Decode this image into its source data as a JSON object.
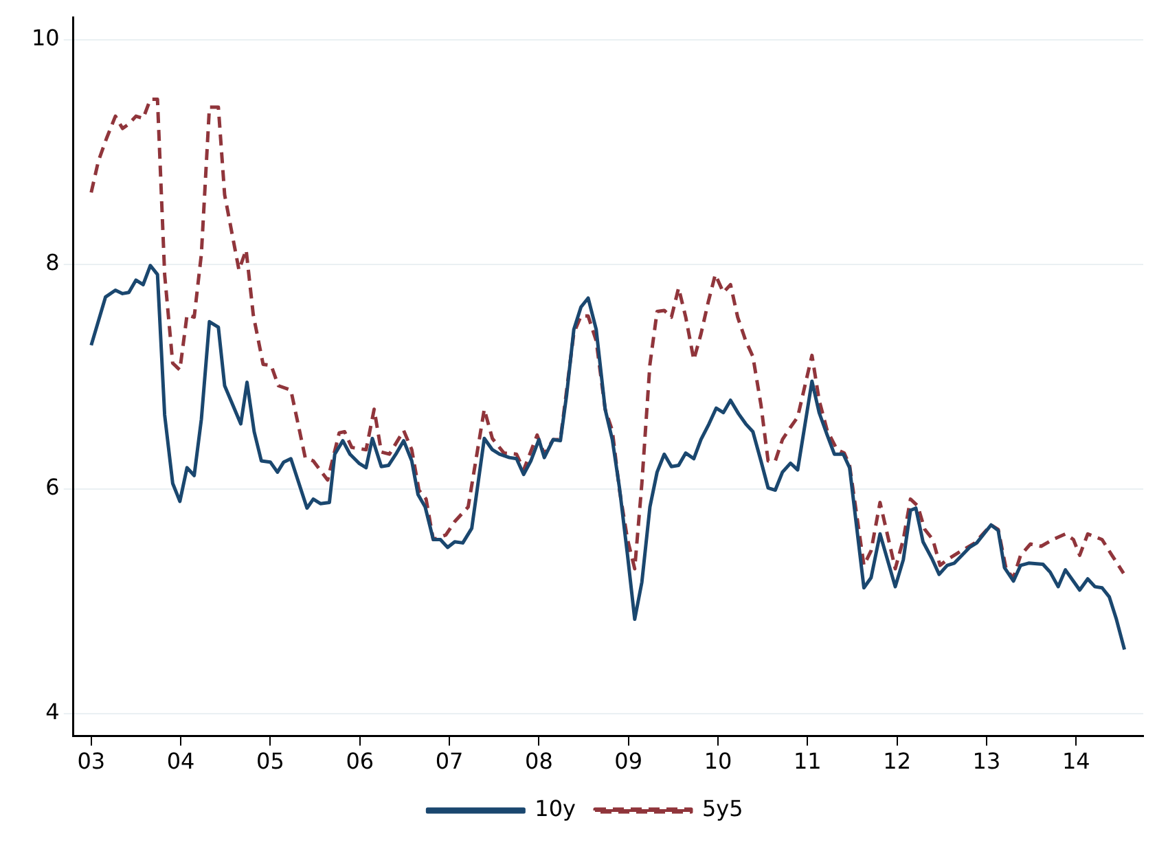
{
  "chart_data": {
    "type": "line",
    "xlim": [
      2002.8,
      2014.75
    ],
    "ylim": [
      3.8,
      10.2
    ],
    "xticks": [
      {
        "value": 2003,
        "label": "03"
      },
      {
        "value": 2004,
        "label": "04"
      },
      {
        "value": 2005,
        "label": "05"
      },
      {
        "value": 2006,
        "label": "06"
      },
      {
        "value": 2007,
        "label": "07"
      },
      {
        "value": 2008,
        "label": "08"
      },
      {
        "value": 2009,
        "label": "09"
      },
      {
        "value": 2010,
        "label": "10"
      },
      {
        "value": 2011,
        "label": "11"
      },
      {
        "value": 2012,
        "label": "12"
      },
      {
        "value": 2013,
        "label": "13"
      },
      {
        "value": 2014,
        "label": "14"
      }
    ],
    "yticks": [
      4,
      6,
      8,
      10
    ],
    "grid": "y",
    "legend": "bottom",
    "marker": "none",
    "series": [
      {
        "name": "10y",
        "color": "#1a476f",
        "line_style": "solid",
        "x": [
          2003.0,
          2003.16,
          2003.27,
          2003.35,
          2003.42,
          2003.5,
          2003.58,
          2003.66,
          2003.74,
          2003.82,
          2003.91,
          2003.99,
          2004.07,
          2004.15,
          2004.23,
          2004.32,
          2004.42,
          2004.49,
          2004.67,
          2004.74,
          2004.82,
          2004.9,
          2005.0,
          2005.08,
          2005.15,
          2005.23,
          2005.41,
          2005.48,
          2005.56,
          2005.66,
          2005.72,
          2005.81,
          2005.89,
          2005.99,
          2006.07,
          2006.14,
          2006.24,
          2006.32,
          2006.41,
          2006.49,
          2006.58,
          2006.65,
          2006.73,
          2006.82,
          2006.9,
          2006.98,
          2007.06,
          2007.15,
          2007.25,
          2007.39,
          2007.48,
          2007.56,
          2007.67,
          2007.75,
          2007.83,
          2007.91,
          2008.0,
          2008.06,
          2008.16,
          2008.24,
          2008.31,
          2008.39,
          2008.47,
          2008.55,
          2008.64,
          2008.74,
          2008.82,
          2008.9,
          2008.99,
          2009.07,
          2009.15,
          2009.24,
          2009.32,
          2009.4,
          2009.48,
          2009.56,
          2009.64,
          2009.73,
          2009.81,
          2009.9,
          2009.98,
          2010.06,
          2010.14,
          2010.23,
          2010.31,
          2010.39,
          2010.48,
          2010.56,
          2010.64,
          2010.72,
          2010.81,
          2010.89,
          2011.05,
          2011.13,
          2011.22,
          2011.3,
          2011.4,
          2011.47,
          2011.63,
          2011.71,
          2011.81,
          2011.98,
          2012.07,
          2012.15,
          2012.21,
          2012.29,
          2012.39,
          2012.47,
          2012.56,
          2012.64,
          2012.81,
          2012.89,
          2013.05,
          2013.13,
          2013.2,
          2013.3,
          2013.38,
          2013.47,
          2013.63,
          2013.71,
          2013.8,
          2013.88,
          2014.04,
          2014.13,
          2014.21,
          2014.29,
          2014.37,
          2014.45,
          2014.54
        ],
        "values": [
          7.28,
          7.71,
          7.77,
          7.74,
          7.75,
          7.86,
          7.82,
          7.99,
          7.91,
          6.66,
          6.05,
          5.89,
          6.19,
          6.12,
          6.62,
          7.49,
          7.44,
          6.92,
          6.58,
          6.95,
          6.51,
          6.25,
          6.24,
          6.15,
          6.24,
          6.27,
          5.83,
          5.91,
          5.87,
          5.88,
          6.31,
          6.43,
          6.31,
          6.23,
          6.19,
          6.45,
          6.2,
          6.21,
          6.32,
          6.43,
          6.25,
          5.95,
          5.84,
          5.55,
          5.55,
          5.48,
          5.53,
          5.52,
          5.65,
          6.45,
          6.35,
          6.31,
          6.28,
          6.27,
          6.13,
          6.25,
          6.44,
          6.28,
          6.44,
          6.43,
          6.84,
          7.42,
          7.62,
          7.7,
          7.42,
          6.71,
          6.44,
          6.01,
          5.41,
          4.84,
          5.17,
          5.84,
          6.15,
          6.31,
          6.2,
          6.21,
          6.32,
          6.27,
          6.44,
          6.58,
          6.72,
          6.68,
          6.79,
          6.67,
          6.58,
          6.51,
          6.25,
          6.01,
          5.99,
          6.15,
          6.23,
          6.17,
          6.96,
          6.68,
          6.48,
          6.31,
          6.31,
          6.19,
          5.12,
          5.21,
          5.6,
          5.13,
          5.37,
          5.81,
          5.83,
          5.53,
          5.38,
          5.24,
          5.32,
          5.34,
          5.48,
          5.52,
          5.68,
          5.63,
          5.3,
          5.18,
          5.32,
          5.34,
          5.33,
          5.26,
          5.13,
          5.28,
          5.1,
          5.2,
          5.13,
          5.12,
          5.04,
          4.84,
          4.57
        ]
      },
      {
        "name": "5y5",
        "color": "#90353b",
        "line_style": "dashed",
        "x": [
          2003.0,
          2003.08,
          2003.17,
          2003.27,
          2003.35,
          2003.42,
          2003.5,
          2003.58,
          2003.66,
          2003.74,
          2003.82,
          2003.91,
          2003.99,
          2004.07,
          2004.15,
          2004.23,
          2004.32,
          2004.42,
          2004.49,
          2004.65,
          2004.73,
          2004.81,
          2004.92,
          2005.01,
          2005.09,
          2005.23,
          2005.39,
          2005.48,
          2005.64,
          2005.77,
          2005.83,
          2005.91,
          2006.07,
          2006.16,
          2006.24,
          2006.33,
          2006.49,
          2006.58,
          2006.66,
          2006.74,
          2006.82,
          2006.96,
          2007.06,
          2007.21,
          2007.39,
          2007.48,
          2007.61,
          2007.75,
          2007.83,
          2007.98,
          2008.06,
          2008.16,
          2008.24,
          2008.31,
          2008.39,
          2008.47,
          2008.55,
          2008.64,
          2008.74,
          2008.82,
          2008.9,
          2008.99,
          2009.07,
          2009.15,
          2009.24,
          2009.32,
          2009.4,
          2009.48,
          2009.56,
          2009.64,
          2009.73,
          2009.81,
          2009.89,
          2009.97,
          2010.06,
          2010.14,
          2010.22,
          2010.31,
          2010.39,
          2010.48,
          2010.56,
          2010.64,
          2010.72,
          2010.81,
          2010.89,
          2011.05,
          2011.13,
          2011.22,
          2011.33,
          2011.41,
          2011.47,
          2011.63,
          2011.71,
          2011.81,
          2011.98,
          2012.07,
          2012.15,
          2012.23,
          2012.31,
          2012.4,
          2012.48,
          2012.56,
          2012.72,
          2012.87,
          2013.05,
          2013.13,
          2013.22,
          2013.3,
          2013.38,
          2013.49,
          2013.61,
          2013.74,
          2013.88,
          2013.97,
          2014.04,
          2014.13,
          2014.29,
          2014.4,
          2014.53
        ],
        "values": [
          8.64,
          8.92,
          9.12,
          9.32,
          9.21,
          9.25,
          9.32,
          9.3,
          9.47,
          9.47,
          7.91,
          7.12,
          7.06,
          7.55,
          7.53,
          8.09,
          9.4,
          9.4,
          8.62,
          7.95,
          8.13,
          7.55,
          7.11,
          7.1,
          6.92,
          6.88,
          6.28,
          6.25,
          6.08,
          6.5,
          6.51,
          6.37,
          6.35,
          6.71,
          6.33,
          6.31,
          6.52,
          6.35,
          5.99,
          5.91,
          5.55,
          5.59,
          5.71,
          5.84,
          6.71,
          6.45,
          6.32,
          6.31,
          6.17,
          6.48,
          6.31,
          6.44,
          6.44,
          6.88,
          7.39,
          7.54,
          7.54,
          7.32,
          6.71,
          6.52,
          5.99,
          5.55,
          5.29,
          6.05,
          7.11,
          7.58,
          7.59,
          7.53,
          7.79,
          7.53,
          7.15,
          7.38,
          7.66,
          7.91,
          7.75,
          7.82,
          7.53,
          7.32,
          7.18,
          6.75,
          6.25,
          6.25,
          6.44,
          6.55,
          6.64,
          7.19,
          6.79,
          6.52,
          6.35,
          6.32,
          6.21,
          5.32,
          5.45,
          5.88,
          5.29,
          5.55,
          5.91,
          5.85,
          5.64,
          5.55,
          5.32,
          5.37,
          5.45,
          5.52,
          5.68,
          5.64,
          5.28,
          5.21,
          5.41,
          5.51,
          5.49,
          5.55,
          5.6,
          5.55,
          5.41,
          5.6,
          5.55,
          5.41,
          5.25
        ]
      }
    ]
  }
}
